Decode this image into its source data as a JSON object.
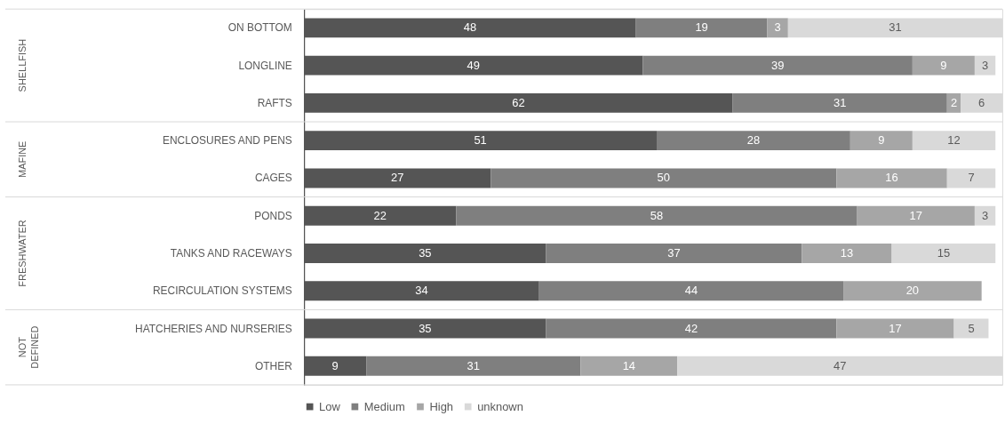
{
  "chart_data": {
    "type": "bar",
    "orientation": "horizontal",
    "stacked": true,
    "data_labels": true,
    "legend": "bottom",
    "categories": [
      "ON BOTTOM",
      "LONGLINE",
      "RAFTS",
      "ENCLOSURES AND PENS",
      "CAGES",
      "PONDS",
      "TANKS AND RACEWAYS",
      "RECIRCULATION SYSTEMS",
      "HATCHERIES AND NURSERIES",
      "OTHER"
    ],
    "annotations": [
      "SHELLFISH",
      "MAFINE",
      "FRESHWATER",
      "NOT DEFINED"
    ],
    "series": [
      {
        "name": "Low",
        "color": "#555555",
        "values": [
          48,
          49,
          62,
          51,
          27,
          22,
          35,
          34,
          35,
          9
        ]
      },
      {
        "name": "Medium",
        "color": "#7f7f7f",
        "values": [
          19,
          39,
          31,
          28,
          50,
          58,
          37,
          44,
          42,
          31
        ]
      },
      {
        "name": "High",
        "color": "#a6a6a6",
        "values": [
          3,
          9,
          2,
          9,
          16,
          17,
          13,
          20,
          17,
          14
        ]
      },
      {
        "name": "unknown",
        "color": "#d9d9d9",
        "values": [
          31,
          3,
          6,
          12,
          7,
          3,
          15,
          null,
          5,
          47
        ]
      }
    ]
  }
}
